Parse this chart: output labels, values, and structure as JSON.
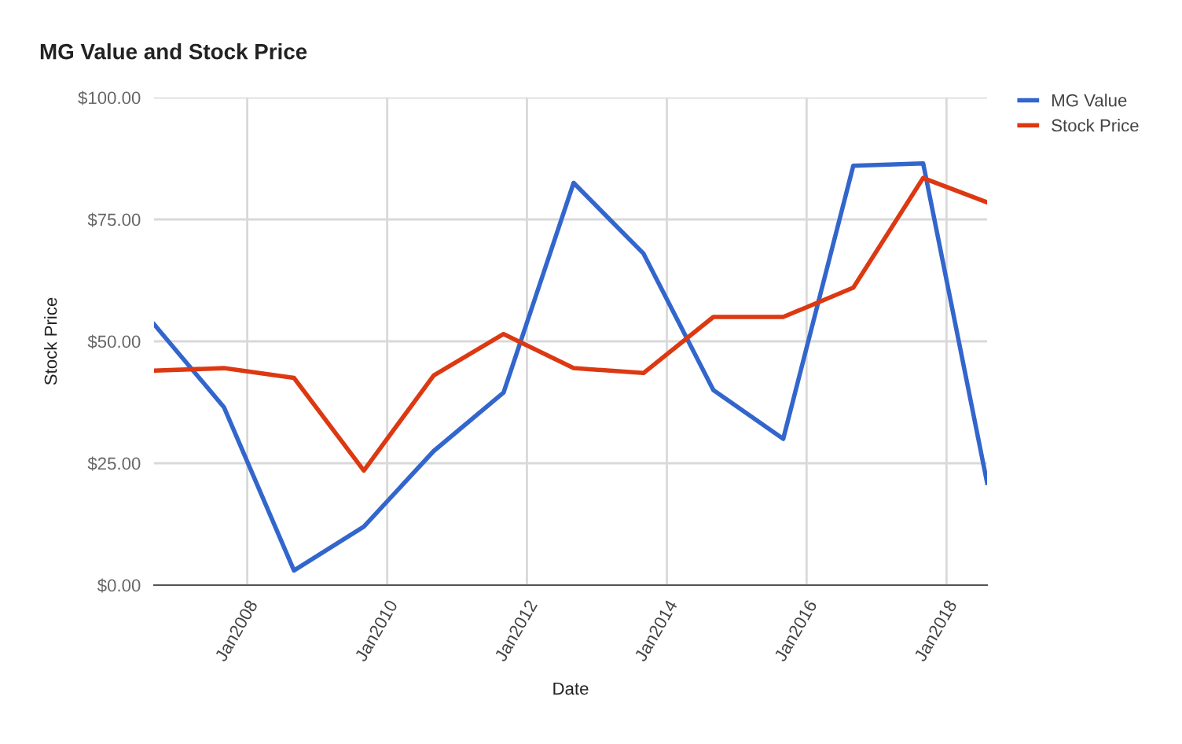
{
  "chart_data": {
    "type": "line",
    "title": "MG Value and Stock Price",
    "xlabel": "Date",
    "ylabel": "Stock Price",
    "x": [
      "2006-09",
      "2007-09",
      "2008-09",
      "2009-09",
      "2010-09",
      "2011-09",
      "2012-09",
      "2013-09",
      "2014-09",
      "2015-09",
      "2016-09",
      "2017-09",
      "2018-08"
    ],
    "series": [
      {
        "name": "MG Value",
        "color": "#3366cc",
        "values": [
          53.5,
          36.5,
          3,
          12,
          27.5,
          39.5,
          82.5,
          68,
          40,
          30,
          86,
          86.5,
          21
        ]
      },
      {
        "name": "Stock Price",
        "color": "#dc3912",
        "values": [
          44,
          44.5,
          42.5,
          23.5,
          43,
          51.5,
          44.5,
          43.5,
          55,
          55,
          61,
          83.5,
          78.5
        ]
      }
    ],
    "xlim": [
      "2006-09",
      "2018-08"
    ],
    "xticks": [
      {
        "value": "2008-01",
        "label": "Jan2008"
      },
      {
        "value": "2010-01",
        "label": "Jan2010"
      },
      {
        "value": "2012-01",
        "label": "Jan2012"
      },
      {
        "value": "2014-01",
        "label": "Jan2014"
      },
      {
        "value": "2016-01",
        "label": "Jan2016"
      },
      {
        "value": "2018-01",
        "label": "Jan2018"
      }
    ],
    "ylim": [
      0,
      100
    ],
    "yticks": [
      {
        "value": 0,
        "label": "$0.00"
      },
      {
        "value": 25,
        "label": "$25.00"
      },
      {
        "value": 50,
        "label": "$50.00"
      },
      {
        "value": 75,
        "label": "$75.00"
      },
      {
        "value": 100,
        "label": "$100.00"
      }
    ],
    "grid": true,
    "legend": "top right",
    "marker": "none",
    "line_style": "solid"
  }
}
